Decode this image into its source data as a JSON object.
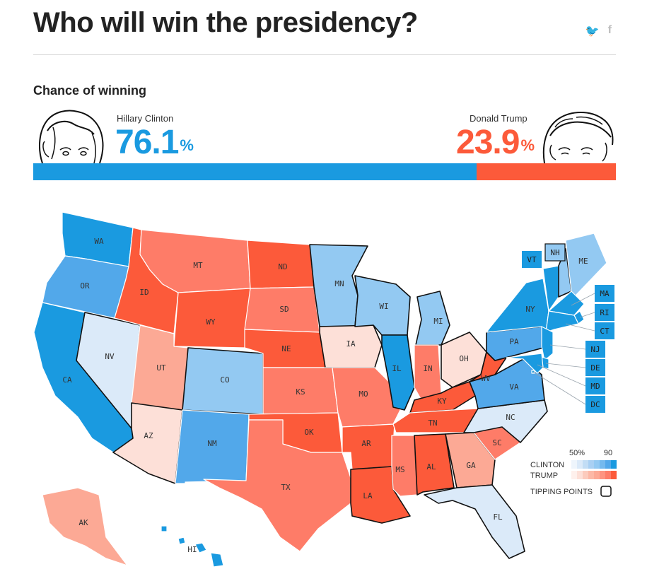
{
  "header": {
    "title": "Who will win the presidency?",
    "share": {
      "twitter_icon": "twitter-icon",
      "facebook_icon": "facebook-icon",
      "twitter_glyph": "🐦",
      "facebook_glyph": "f"
    }
  },
  "chance": {
    "label": "Chance of winning",
    "clinton": {
      "name": "Hillary Clinton",
      "value": "76.1",
      "pct_sign": "%",
      "share": 0.761,
      "color": "#1a9ae0"
    },
    "trump": {
      "name": "Donald Trump",
      "value": "23.9",
      "pct_sign": "%",
      "share": 0.239,
      "color": "#fc5a3a"
    }
  },
  "colors": {
    "dem_solid": "#1a9ae0",
    "dem_likely": "#52a8ea",
    "dem_lean": "#93c9f2",
    "dem_tilt": "#dbeaf9",
    "rep_solid": "#fc5a3a",
    "rep_likely": "#fe7c68",
    "rep_lean": "#fca995",
    "rep_tilt": "#fde0d8"
  },
  "states": [
    {
      "abbr": "WA",
      "party": "dem_solid"
    },
    {
      "abbr": "OR",
      "party": "dem_likely"
    },
    {
      "abbr": "CA",
      "party": "dem_solid"
    },
    {
      "abbr": "NV",
      "party": "dem_tilt"
    },
    {
      "abbr": "ID",
      "party": "rep_solid"
    },
    {
      "abbr": "MT",
      "party": "rep_likely"
    },
    {
      "abbr": "WY",
      "party": "rep_solid"
    },
    {
      "abbr": "UT",
      "party": "rep_lean"
    },
    {
      "abbr": "AZ",
      "party": "rep_tilt"
    },
    {
      "abbr": "CO",
      "party": "dem_lean"
    },
    {
      "abbr": "NM",
      "party": "dem_likely"
    },
    {
      "abbr": "ND",
      "party": "rep_solid"
    },
    {
      "abbr": "SD",
      "party": "rep_likely"
    },
    {
      "abbr": "NE",
      "party": "rep_solid"
    },
    {
      "abbr": "KS",
      "party": "rep_likely"
    },
    {
      "abbr": "OK",
      "party": "rep_solid"
    },
    {
      "abbr": "TX",
      "party": "rep_likely"
    },
    {
      "abbr": "MN",
      "party": "dem_lean"
    },
    {
      "abbr": "IA",
      "party": "rep_tilt"
    },
    {
      "abbr": "MO",
      "party": "rep_likely"
    },
    {
      "abbr": "AR",
      "party": "rep_solid"
    },
    {
      "abbr": "LA",
      "party": "rep_solid"
    },
    {
      "abbr": "WI",
      "party": "dem_lean"
    },
    {
      "abbr": "IL",
      "party": "dem_solid"
    },
    {
      "abbr": "MI",
      "party": "dem_lean"
    },
    {
      "abbr": "IN",
      "party": "rep_likely"
    },
    {
      "abbr": "OH",
      "party": "rep_tilt"
    },
    {
      "abbr": "KY",
      "party": "rep_solid"
    },
    {
      "abbr": "TN",
      "party": "rep_solid"
    },
    {
      "abbr": "MS",
      "party": "rep_likely"
    },
    {
      "abbr": "AL",
      "party": "rep_solid"
    },
    {
      "abbr": "GA",
      "party": "rep_lean"
    },
    {
      "abbr": "FL",
      "party": "dem_tilt"
    },
    {
      "abbr": "SC",
      "party": "rep_likely"
    },
    {
      "abbr": "NC",
      "party": "dem_tilt"
    },
    {
      "abbr": "VA",
      "party": "dem_likely"
    },
    {
      "abbr": "WV",
      "party": "rep_solid"
    },
    {
      "abbr": "PA",
      "party": "dem_likely"
    },
    {
      "abbr": "NY",
      "party": "dem_solid"
    },
    {
      "abbr": "VT",
      "party": "dem_solid"
    },
    {
      "abbr": "NH",
      "party": "dem_lean"
    },
    {
      "abbr": "ME",
      "party": "dem_lean"
    },
    {
      "abbr": "MA",
      "party": "dem_solid"
    },
    {
      "abbr": "RI",
      "party": "dem_solid"
    },
    {
      "abbr": "CT",
      "party": "dem_solid"
    },
    {
      "abbr": "NJ",
      "party": "dem_solid"
    },
    {
      "abbr": "DE",
      "party": "dem_solid"
    },
    {
      "abbr": "MD",
      "party": "dem_solid"
    },
    {
      "abbr": "DC",
      "party": "dem_solid"
    },
    {
      "abbr": "AK",
      "party": "rep_lean"
    },
    {
      "abbr": "HI",
      "party": "dem_solid"
    }
  ],
  "tipping_points": [
    "NV",
    "CO",
    "MN",
    "WI",
    "MI",
    "IL",
    "PA",
    "NH",
    "OH",
    "IA",
    "FL",
    "NC",
    "VA",
    "AZ",
    "WV",
    "KY",
    "AL",
    "GA",
    "LA"
  ],
  "legend": {
    "scale_low": "50%",
    "scale_high": "90",
    "clinton_label": "CLINTON",
    "trump_label": "TRUMP",
    "tipping_label": "TIPPING POINTS",
    "clinton_ramp": [
      "#eef5fc",
      "#dbeaf9",
      "#c2ddf5",
      "#a9d0f3",
      "#93c9f2",
      "#74b9ee",
      "#52a8ea",
      "#1a9ae0"
    ],
    "trump_ramp": [
      "#fef0ec",
      "#fde0d8",
      "#fccbbd",
      "#fcb8a6",
      "#fca995",
      "#fe9380",
      "#fe7c68",
      "#fc5a3a"
    ]
  }
}
